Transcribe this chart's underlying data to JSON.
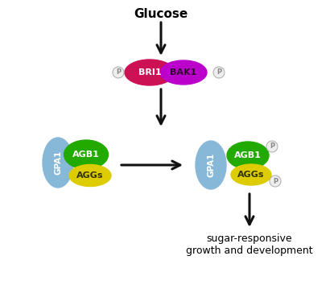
{
  "title": "Glucose",
  "bri1_color": "#cc1155",
  "bak1_color": "#bb00cc",
  "gpa1_color": "#88b8d8",
  "agb1_color": "#22aa00",
  "aggs_color": "#ddcc00",
  "p_circle_color": "#eeeeee",
  "p_text_color": "#888888",
  "arrow_color": "#111111",
  "bg_color": "#ffffff",
  "bottom_text1": "sugar-responsive",
  "bottom_text2": "growth and development"
}
